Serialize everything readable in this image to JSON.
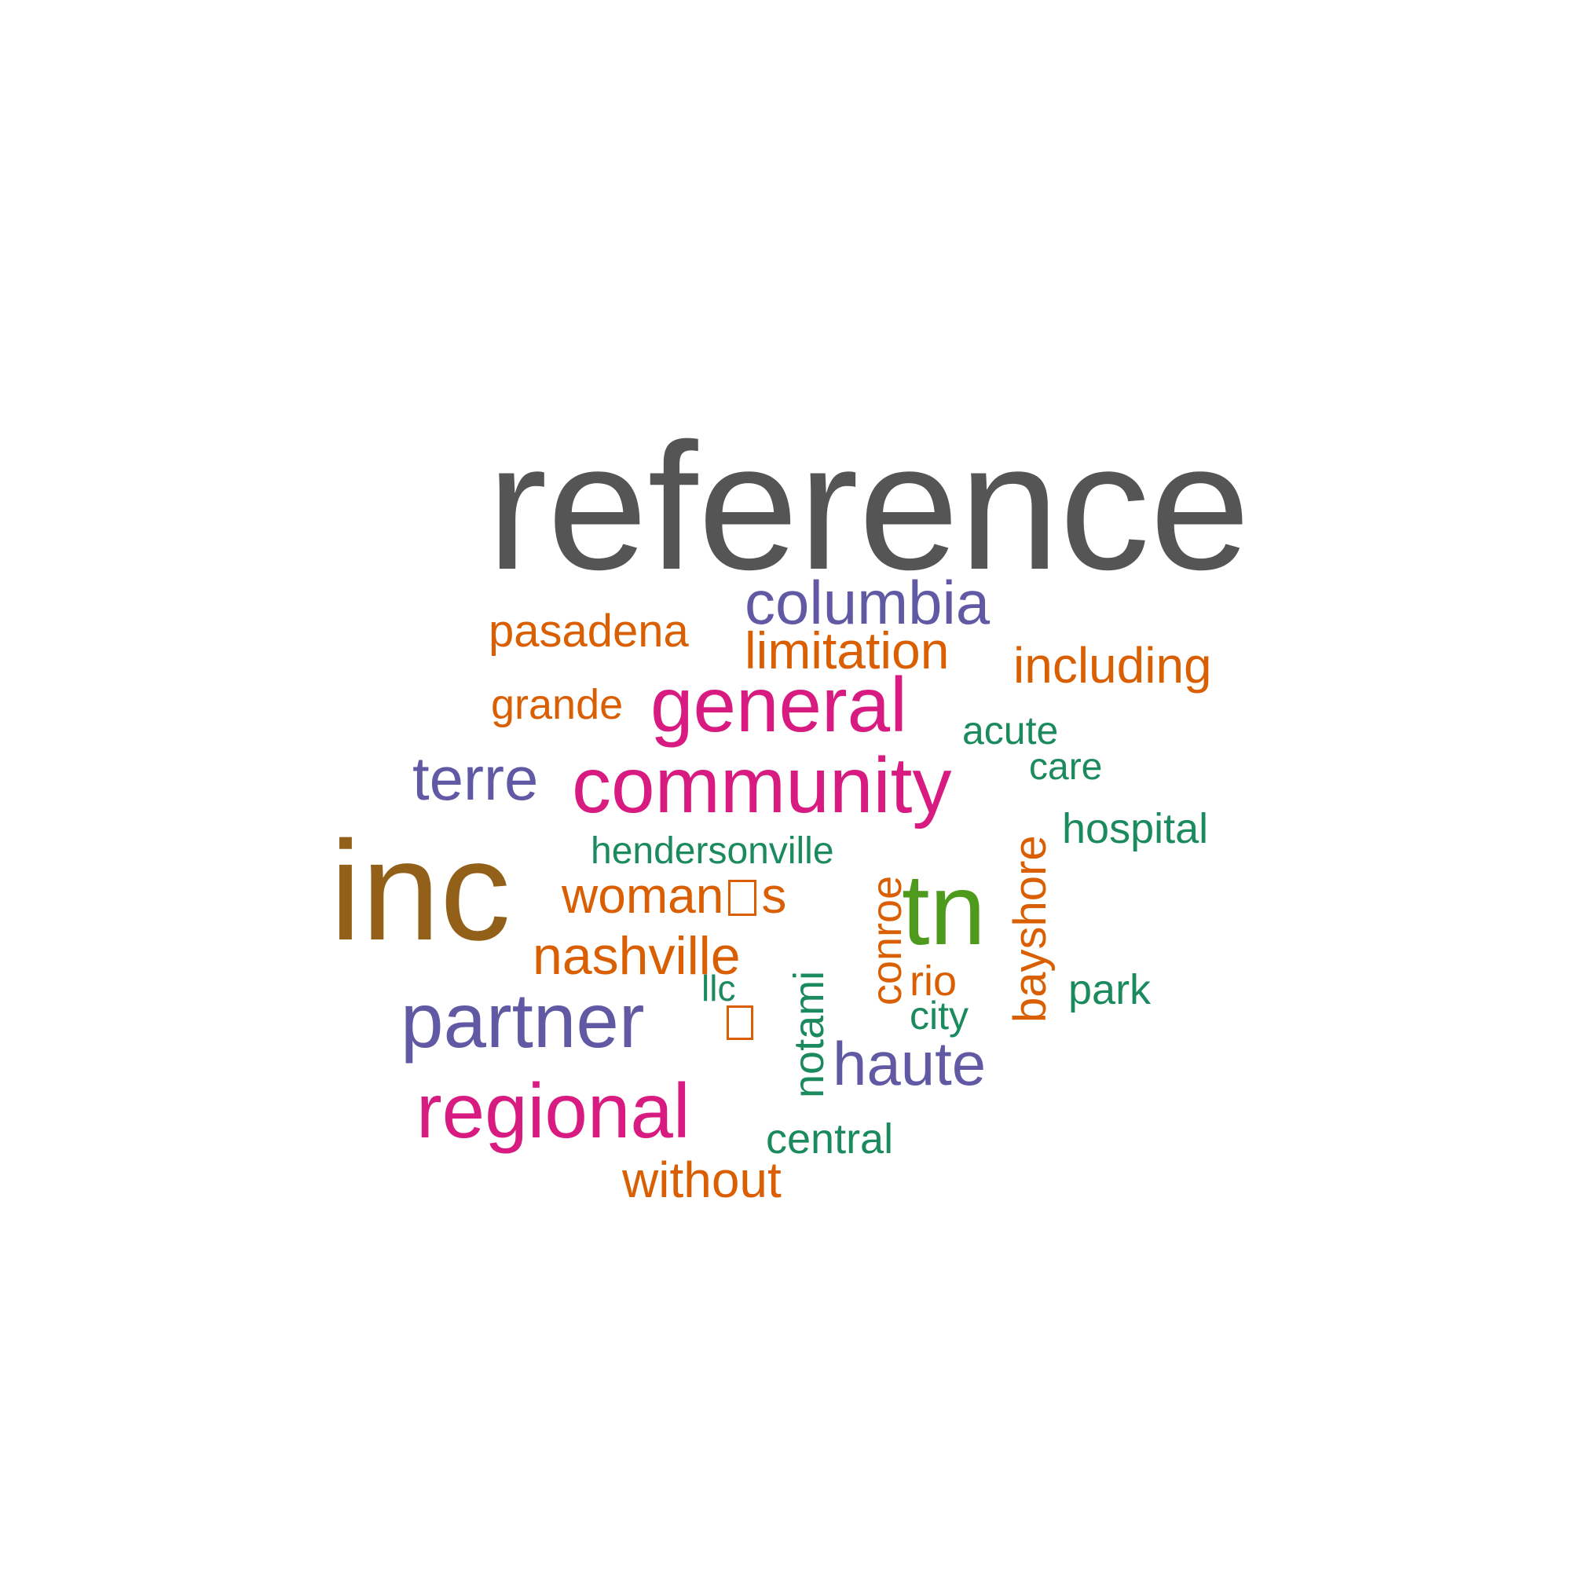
{
  "words": {
    "reference": {
      "text": "reference",
      "color": "#555555"
    },
    "inc": {
      "text": "inc",
      "color": "#93601a"
    },
    "community": {
      "text": "community",
      "color": "#d81b80"
    },
    "general": {
      "text": "general",
      "color": "#d81b80"
    },
    "tn": {
      "text": "tn",
      "color": "#4e9a1c"
    },
    "partner": {
      "text": "partner",
      "color": "#6159a3"
    },
    "regional": {
      "text": "regional",
      "color": "#d81b80"
    },
    "columbia": {
      "text": "columbia",
      "color": "#6159a3"
    },
    "haute": {
      "text": "haute",
      "color": "#6159a3"
    },
    "terre": {
      "text": "terre",
      "color": "#6159a3"
    },
    "nashville": {
      "text": "nashville",
      "color": "#d95f02"
    },
    "womans_left": {
      "text": "woman",
      "color": "#d95f02"
    },
    "womans_right": {
      "text": "s",
      "color": "#d95f02"
    },
    "limitation": {
      "text": "limitation",
      "color": "#d95f02"
    },
    "including": {
      "text": "including",
      "color": "#d95f02"
    },
    "pasadena": {
      "text": "pasadena",
      "color": "#d95f02"
    },
    "without": {
      "text": "without",
      "color": "#d95f02"
    },
    "grande": {
      "text": "grande",
      "color": "#d95f02"
    },
    "acute": {
      "text": "acute",
      "color": "#1b8a5f"
    },
    "care": {
      "text": "care",
      "color": "#1b8a5f"
    },
    "hospital": {
      "text": "hospital",
      "color": "#1b8a5f"
    },
    "hendersonville": {
      "text": "hendersonville",
      "color": "#1b8a5f"
    },
    "park": {
      "text": "park",
      "color": "#1b8a5f"
    },
    "central": {
      "text": "central",
      "color": "#1b8a5f"
    },
    "rio": {
      "text": "rio",
      "color": "#d95f02"
    },
    "city": {
      "text": "city",
      "color": "#1b8a5f"
    },
    "llc": {
      "text": "llc",
      "color": "#1b8a5f"
    },
    "bayshore": {
      "text": "bayshore",
      "color": "#d95f02"
    },
    "conroe": {
      "text": "conroe",
      "color": "#d95f02"
    },
    "notami": {
      "text": "notami",
      "color": "#1b8a5f"
    }
  },
  "missing_glyph_color": "#d95f02"
}
